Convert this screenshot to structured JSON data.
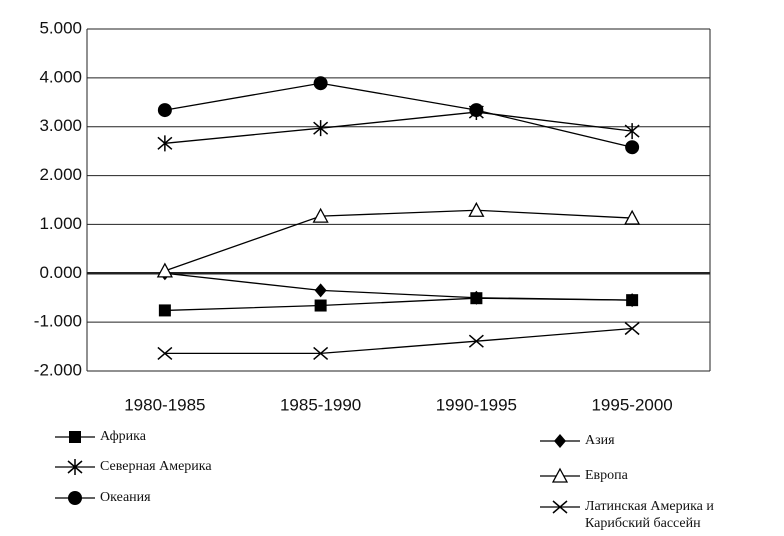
{
  "chart_data": {
    "type": "line",
    "categories": [
      "1980-1985",
      "1985-1990",
      "1990-1995",
      "1995-2000"
    ],
    "series": [
      {
        "name": "Африка",
        "color": "#000000",
        "marker": "square",
        "values": [
          -0.76,
          -0.66,
          -0.51,
          -0.55
        ]
      },
      {
        "name": "Азия",
        "color": "#000000",
        "marker": "diamond",
        "values": [
          0,
          -0.35,
          -0.5,
          -0.55
        ]
      },
      {
        "name": "Северная Америка",
        "color": "#000000",
        "marker": "asterisk",
        "values": [
          2.66,
          2.97,
          3.3,
          2.91
        ]
      },
      {
        "name": "Европа",
        "color": "#000000",
        "marker": "triangle",
        "values": [
          0.05,
          1.17,
          1.29,
          1.13
        ]
      },
      {
        "name": "Океания",
        "color": "#000000",
        "marker": "circle",
        "values": [
          3.34,
          3.89,
          3.34,
          2.58
        ]
      },
      {
        "name": "Латинская Америка и Карибский бассейн",
        "color": "#000000",
        "marker": "x",
        "values": [
          -1.64,
          -1.64,
          -1.39,
          -1.13
        ]
      }
    ],
    "ylim": [
      -2,
      5
    ],
    "yticks": [
      {
        "value": -2,
        "label": "-2.000"
      },
      {
        "value": -1,
        "label": "-1.000"
      },
      {
        "value": 0,
        "label": "0.000"
      },
      {
        "value": 1,
        "label": "1.000"
      },
      {
        "value": 2,
        "label": "2.000"
      },
      {
        "value": 3,
        "label": "3.000"
      },
      {
        "value": 4,
        "label": "4.000"
      },
      {
        "value": 5,
        "label": "5.000"
      }
    ],
    "grid": true
  }
}
